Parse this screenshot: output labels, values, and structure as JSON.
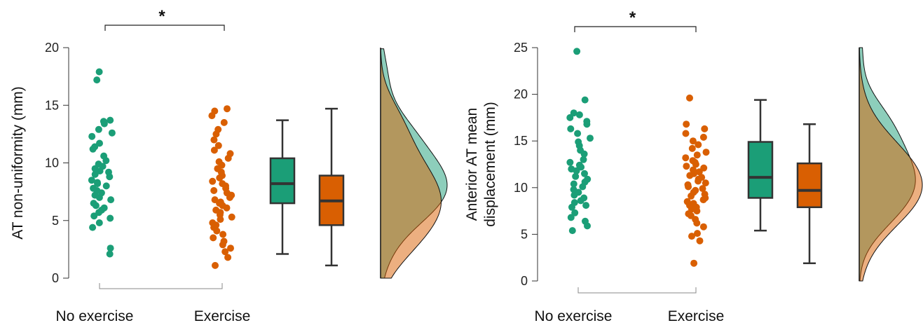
{
  "chart_data": [
    {
      "type": "scatter",
      "subtype": "raincloud",
      "ylabel": "AT non-uniformity (mm)",
      "ylim": [
        0,
        20
      ],
      "yticks": [
        0,
        5,
        10,
        15,
        20
      ],
      "categories": [
        "No exercise",
        "Exercise"
      ],
      "significance": "*",
      "grid": false,
      "series": [
        {
          "name": "No exercise",
          "color": "#1b9e77",
          "points": [
            2.1,
            2.6,
            4.4,
            4.8,
            5.2,
            5.4,
            5.7,
            5.9,
            6.1,
            6.3,
            6.5,
            6.8,
            7.0,
            7.2,
            7.4,
            7.6,
            7.8,
            8.0,
            8.2,
            8.3,
            8.5,
            8.8,
            9.0,
            9.2,
            9.3,
            9.5,
            9.7,
            9.9,
            10.2,
            10.6,
            11.2,
            11.4,
            11.7,
            12.3,
            12.6,
            12.9,
            13.4,
            13.6,
            13.7,
            17.2,
            17.9
          ],
          "box": {
            "min": 2.1,
            "q1": 6.5,
            "median": 8.2,
            "q3": 10.4,
            "max": 13.7
          }
        },
        {
          "name": "Exercise",
          "color": "#d95f02",
          "points": [
            1.1,
            1.8,
            2.3,
            2.6,
            2.9,
            3.2,
            3.5,
            3.8,
            4.1,
            4.4,
            4.6,
            4.8,
            5.1,
            5.3,
            5.5,
            5.7,
            5.9,
            6.1,
            6.3,
            6.5,
            6.6,
            6.8,
            7.0,
            7.2,
            7.4,
            7.6,
            7.8,
            8.0,
            8.2,
            8.4,
            8.7,
            8.9,
            9.2,
            9.5,
            9.8,
            10.1,
            10.4,
            10.8,
            11.1,
            11.5,
            12.0,
            12.5,
            12.9,
            13.5,
            14.1,
            14.5,
            14.7
          ],
          "box": {
            "min": 1.1,
            "q1": 4.6,
            "median": 6.7,
            "q3": 8.9,
            "max": 14.7
          }
        }
      ]
    },
    {
      "type": "scatter",
      "subtype": "raincloud",
      "ylabel": "Anterior AT mean displacement (mm)",
      "ylabel_lines": [
        "Anterior AT mean",
        "displacement (mm)"
      ],
      "ylim": [
        0,
        25
      ],
      "yticks": [
        0,
        5,
        10,
        15,
        20,
        25
      ],
      "categories": [
        "No exercise",
        "Exercise"
      ],
      "significance": "*",
      "grid": false,
      "series": [
        {
          "name": "No exercise",
          "color": "#1b9e77",
          "points": [
            5.4,
            5.9,
            6.4,
            6.8,
            7.3,
            7.9,
            8.1,
            8.4,
            8.6,
            8.9,
            9.2,
            9.5,
            9.8,
            10.1,
            10.4,
            10.6,
            10.9,
            11.2,
            11.5,
            11.8,
            12.0,
            12.2,
            12.4,
            12.7,
            13.0,
            13.6,
            14.0,
            14.5,
            14.9,
            15.3,
            15.8,
            16.3,
            16.8,
            17.1,
            17.5,
            17.8,
            18.0,
            19.4,
            24.6
          ],
          "box": {
            "min": 5.4,
            "q1": 8.9,
            "median": 11.1,
            "q3": 14.9,
            "max": 19.4
          }
        },
        {
          "name": "Exercise",
          "color": "#d95f02",
          "points": [
            1.9,
            4.3,
            4.8,
            5.1,
            5.8,
            6.2,
            6.6,
            7.0,
            7.2,
            7.5,
            7.7,
            7.9,
            8.1,
            8.3,
            8.5,
            8.7,
            8.9,
            9.1,
            9.3,
            9.5,
            9.7,
            9.9,
            10.1,
            10.3,
            10.5,
            10.7,
            10.9,
            11.1,
            11.3,
            11.5,
            11.7,
            11.9,
            12.1,
            12.3,
            12.5,
            12.7,
            12.9,
            13.2,
            13.5,
            13.8,
            14.2,
            14.6,
            15.0,
            15.4,
            15.8,
            16.3,
            16.8,
            19.6
          ],
          "box": {
            "min": 1.9,
            "q1": 7.9,
            "median": 9.7,
            "q3": 12.6,
            "max": 16.8
          }
        }
      ]
    }
  ]
}
